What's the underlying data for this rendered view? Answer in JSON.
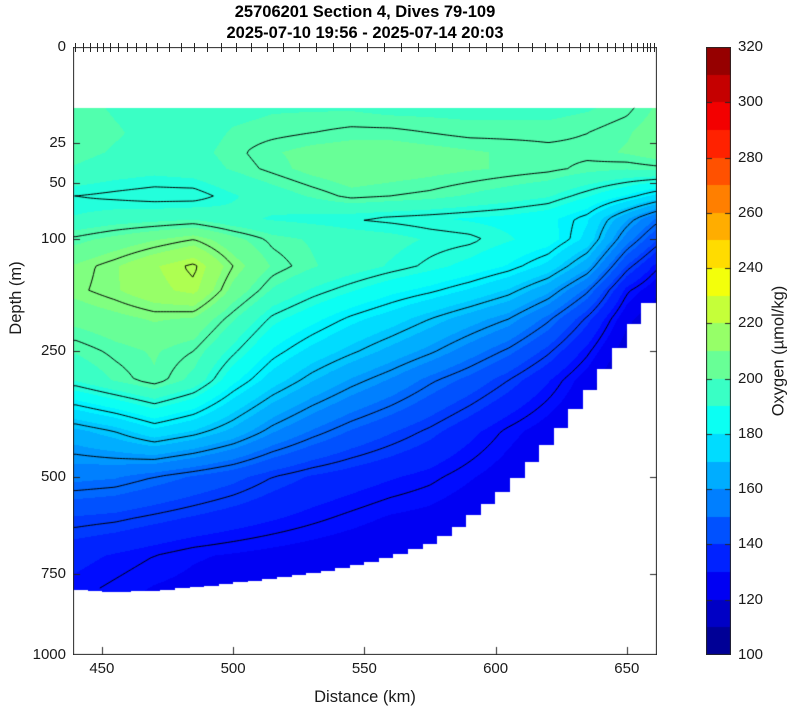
{
  "title": {
    "line1": "25706201 Section 4, Dives 79-109",
    "line2": "2025-07-10 19:56 - 2025-07-14 20:03"
  },
  "axes": {
    "x_label": "Distance (km)",
    "y_label": "Depth (m)",
    "x_ticks": [
      450,
      500,
      550,
      600,
      650
    ],
    "y_ticks": [
      0,
      25,
      50,
      100,
      250,
      500,
      750,
      1000
    ],
    "x_range_km": [
      439,
      661.5
    ],
    "y_range_m": [
      0,
      1000
    ],
    "y_scale": "sqrt",
    "tick_color": "#262626"
  },
  "colorbar": {
    "label": "Oxygen (µmol/kg)",
    "ticks": [
      100,
      120,
      140,
      160,
      180,
      200,
      220,
      240,
      260,
      280,
      300,
      320
    ],
    "range": [
      100,
      320
    ],
    "colormap": "jet",
    "band_step": 10
  },
  "chart_data": {
    "type": "heatmap",
    "title": "25706201 Section 4, Dives 79-109",
    "subtitle": "2025-07-10 19:56 - 2025-07-14 20:03",
    "xlabel": "Distance (km)",
    "ylabel": "Depth (m)",
    "value_label": "Oxygen (µmol/kg)",
    "value_range": [
      100,
      320
    ],
    "x_range": [
      439,
      661.5
    ],
    "fill_band_step": 5,
    "data_top_depth_m": 10,
    "station_width_km": 5.55,
    "contour_levels": [
      130,
      140,
      150,
      160,
      170,
      180,
      190,
      200,
      210,
      220
    ],
    "x_km": [
      440,
      455,
      470,
      485,
      500,
      515,
      530,
      545,
      560,
      575,
      590,
      605,
      620,
      635,
      650,
      661.3
    ],
    "depth_m": [
      10,
      20,
      30,
      40,
      60,
      80,
      100,
      130,
      160,
      200,
      250,
      300,
      400,
      500,
      600,
      700,
      800
    ],
    "oxygen": [
      [
        199,
        200,
        199,
        197,
        190,
        193,
        201,
        208,
        209,
        204,
        198,
        193,
        166,
        154,
        142,
        134,
        131
      ],
      [
        197,
        198,
        197,
        195,
        189,
        195,
        204,
        212,
        212,
        206,
        201,
        198,
        170,
        153,
        141,
        132,
        129
      ],
      [
        196,
        196,
        196,
        194,
        188,
        196,
        207,
        217,
        216,
        208,
        203,
        202,
        176,
        150,
        139,
        130,
        127
      ],
      [
        195,
        195,
        196,
        195,
        188,
        197,
        210,
        221,
        219,
        207,
        200,
        196,
        172,
        147,
        137,
        128,
        126
      ],
      [
        196,
        198,
        199,
        198,
        192,
        194,
        204,
        210,
        206,
        198,
        191,
        184,
        166,
        144,
        135,
        127,
        125
      ],
      [
        197,
        199,
        202,
        201,
        195,
        192,
        199,
        202,
        197,
        189,
        182,
        175,
        158,
        140,
        133,
        126,
        124
      ],
      [
        197,
        200,
        204,
        204,
        198,
        191,
        197,
        198,
        192,
        184,
        176,
        168,
        152,
        137,
        131,
        125,
        123
      ],
      [
        197,
        201,
        205,
        206,
        201,
        190,
        195,
        195,
        188,
        179,
        171,
        162,
        147,
        135,
        129,
        124,
        122
      ],
      [
        196,
        201,
        205,
        205,
        200,
        189,
        194,
        192,
        184,
        175,
        166,
        157,
        143,
        133,
        127,
        123,
        121
      ],
      [
        196,
        200,
        204,
        204,
        199,
        188,
        192,
        189,
        181,
        170,
        161,
        151,
        139,
        131,
        126,
        122,
        120
      ],
      [
        196,
        199,
        203,
        203,
        197,
        187,
        191,
        186,
        177,
        165,
        155,
        146,
        134,
        128,
        124,
        121,
        119
      ],
      [
        196,
        199,
        202,
        202,
        195,
        186,
        188,
        182,
        172,
        160,
        149,
        140,
        129,
        125,
        122,
        119,
        118
      ],
      [
        196,
        199,
        201,
        201,
        193,
        184,
        185,
        176,
        164,
        151,
        141,
        133,
        125,
        122,
        119,
        117,
        116
      ],
      [
        197,
        200,
        201,
        199,
        188,
        178,
        176,
        164,
        151,
        139,
        131,
        125,
        121,
        118,
        116,
        115,
        114
      ],
      [
        199,
        202,
        203,
        198,
        182,
        163,
        155,
        142,
        131,
        124,
        119,
        115,
        113,
        112,
        111,
        110,
        110
      ],
      [
        203,
        205,
        205,
        199,
        176,
        152,
        143,
        131,
        124,
        118,
        114,
        111,
        109,
        108,
        107,
        107,
        106
      ]
    ],
    "bottom_profile": {
      "x_km": [
        439,
        455,
        470,
        485,
        500,
        515,
        528,
        540,
        552,
        564,
        576,
        584,
        590,
        596,
        602,
        608,
        614,
        620,
        626,
        632,
        638,
        644,
        649,
        653,
        656,
        659,
        661.5
      ],
      "depth_m": [
        795,
        805,
        800,
        790,
        778,
        765,
        752,
        738,
        718,
        695,
        665,
        635,
        600,
        570,
        540,
        505,
        465,
        425,
        385,
        345,
        305,
        265,
        232,
        205,
        188,
        173,
        164
      ]
    },
    "dive_marks_km": [
      439.7,
      443,
      445.5,
      448,
      450.5,
      453,
      456,
      459.5,
      463,
      467,
      471,
      475.5,
      480,
      485,
      490,
      495.5,
      501,
      507,
      513,
      519,
      525,
      531.5,
      538,
      544.5,
      551,
      557.5,
      564,
      570.5,
      577,
      583.5,
      590,
      596.5,
      602.5,
      608.5,
      614,
      619,
      623.5,
      628,
      632,
      635.5,
      639,
      642.5,
      645.5,
      648.5,
      651.5,
      654,
      656,
      657.5,
      659,
      660.5
    ]
  }
}
